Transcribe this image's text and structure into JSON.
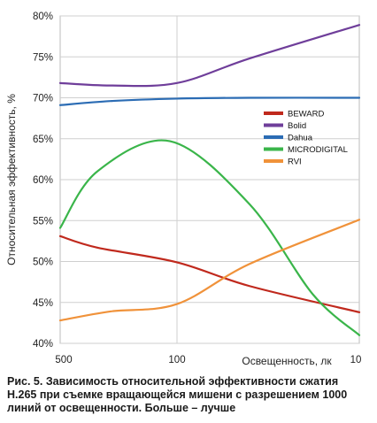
{
  "chart_data": {
    "type": "line",
    "title": "",
    "ylabel": "Относительная эффективность, %",
    "xlabel": "Освещенность, лк",
    "x_categories": [
      "500",
      "100",
      "10"
    ],
    "ylim": [
      40,
      80
    ],
    "yticks": [
      "40%",
      "45%",
      "50%",
      "55%",
      "60%",
      "65%",
      "70%",
      "75%",
      "80%"
    ],
    "grid": true,
    "legend_position": "right-middle",
    "series": [
      {
        "name": "BEWARD",
        "color": "#c0291d",
        "points": [
          [
            500,
            53.1
          ],
          [
            300,
            51.7
          ],
          [
            100,
            49.9
          ],
          [
            40,
            47.0
          ],
          [
            10,
            43.8
          ]
        ]
      },
      {
        "name": "Bolid",
        "color": "#6f3e9a",
        "points": [
          [
            500,
            71.8
          ],
          [
            250,
            71.5
          ],
          [
            100,
            71.8
          ],
          [
            40,
            74.8
          ],
          [
            10,
            78.9
          ]
        ]
      },
      {
        "name": "Dahua",
        "color": "#2b6cb4",
        "points": [
          [
            500,
            69.1
          ],
          [
            250,
            69.6
          ],
          [
            100,
            69.9
          ],
          [
            40,
            70.0
          ],
          [
            10,
            70.0
          ]
        ]
      },
      {
        "name": "MICRODIGITAL",
        "color": "#3ab54a",
        "points": [
          [
            500,
            54.1
          ],
          [
            300,
            61.0
          ],
          [
            110,
            64.7
          ],
          [
            40,
            57.0
          ],
          [
            18,
            46.0
          ],
          [
            10,
            41.0
          ]
        ]
      },
      {
        "name": "RVI",
        "color": "#f0923a",
        "points": [
          [
            500,
            42.8
          ],
          [
            250,
            43.9
          ],
          [
            100,
            44.8
          ],
          [
            40,
            49.7
          ],
          [
            10,
            55.1
          ]
        ]
      }
    ]
  },
  "caption": "Рис. 5. Зависимость относительной эффективности сжатия H.265 при съемке вращающейся мишени с разрешением 1000 линий от освещенности. Больше – лучше"
}
